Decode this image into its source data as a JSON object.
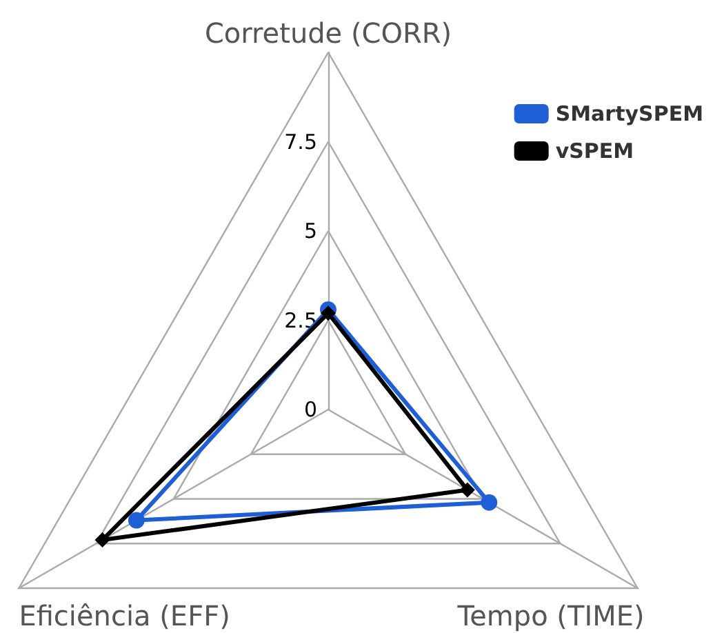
{
  "chart_data": {
    "type": "radar",
    "categories": [
      "Corretude (CORR)",
      "Tempo (TIME)",
      "Eficiência (EFF)"
    ],
    "ylim": [
      0,
      10
    ],
    "yticks": [
      0,
      2.5,
      5,
      7.5
    ],
    "legend": "top right",
    "grid": true,
    "series": [
      {
        "name": "SMartySPEM",
        "color": "#1f5fd6",
        "marker": "circle",
        "values": [
          2.8,
          5.2,
          6.2
        ]
      },
      {
        "name": "vSPEM",
        "color": "#000000",
        "marker": "diamond",
        "values": [
          2.7,
          4.5,
          7.3
        ]
      }
    ]
  }
}
